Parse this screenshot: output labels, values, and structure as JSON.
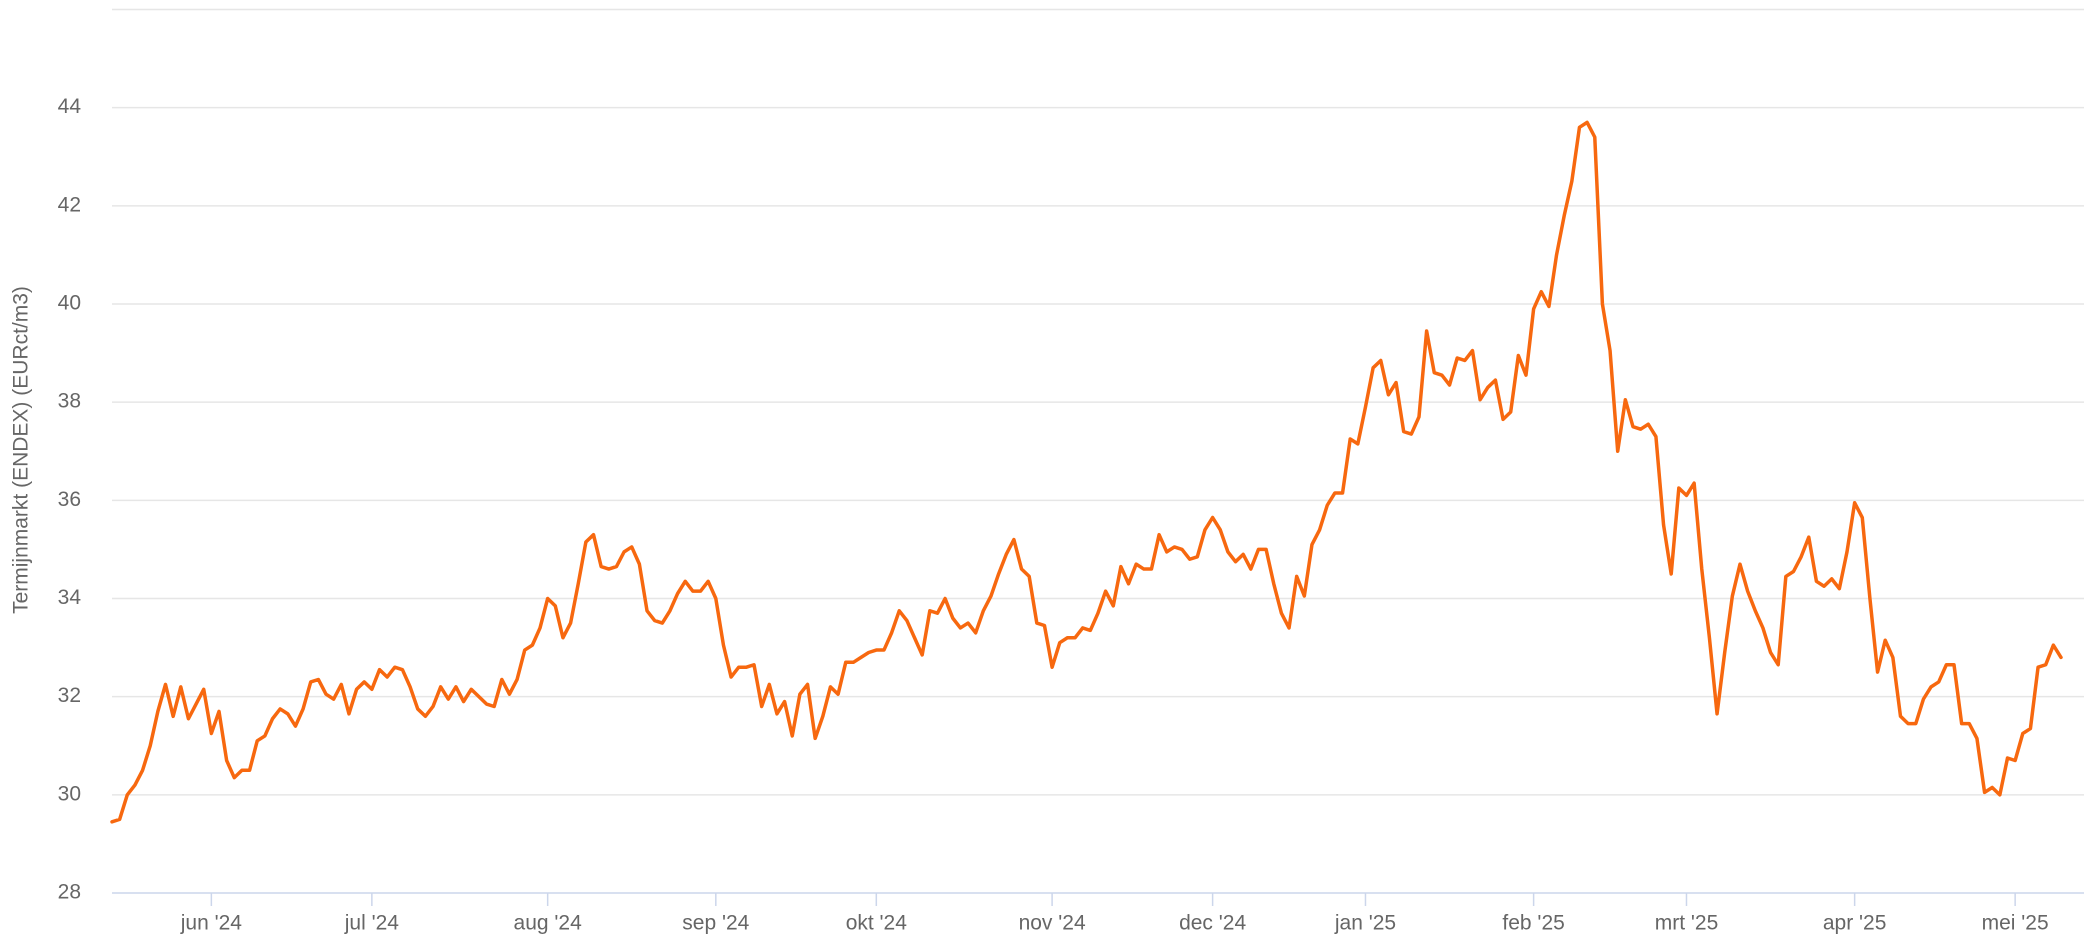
{
  "chart_data": {
    "type": "line",
    "y_label": "Termijnmarkt (ENDEX) (EURct/m3)",
    "color": "#f7680f",
    "ylim": [
      28,
      46
    ],
    "yticks": [
      28,
      30,
      32,
      34,
      36,
      38,
      40,
      42,
      44
    ],
    "grid": true,
    "categories": [
      null,
      null,
      null,
      null,
      null,
      null,
      null,
      null,
      null,
      null,
      null,
      null,
      null,
      "jun '24",
      null,
      null,
      null,
      null,
      null,
      null,
      null,
      null,
      null,
      null,
      null,
      null,
      null,
      null,
      null,
      null,
      null,
      null,
      null,
      null,
      "jul '24",
      null,
      null,
      null,
      null,
      null,
      null,
      null,
      null,
      null,
      null,
      null,
      null,
      null,
      null,
      null,
      null,
      null,
      null,
      null,
      null,
      null,
      null,
      "aug '24",
      null,
      null,
      null,
      null,
      null,
      null,
      null,
      null,
      null,
      null,
      null,
      null,
      null,
      null,
      null,
      null,
      null,
      null,
      null,
      null,
      null,
      "sep '24",
      null,
      null,
      null,
      null,
      null,
      null,
      null,
      null,
      null,
      null,
      null,
      null,
      null,
      null,
      null,
      null,
      null,
      null,
      null,
      null,
      "okt '24",
      null,
      null,
      null,
      null,
      null,
      null,
      null,
      null,
      null,
      null,
      null,
      null,
      null,
      null,
      null,
      null,
      null,
      null,
      null,
      null,
      null,
      null,
      "nov '24",
      null,
      null,
      null,
      null,
      null,
      null,
      null,
      null,
      null,
      null,
      null,
      null,
      null,
      null,
      null,
      null,
      null,
      null,
      null,
      null,
      "dec '24",
      null,
      null,
      null,
      null,
      null,
      null,
      null,
      null,
      null,
      null,
      null,
      null,
      null,
      null,
      null,
      null,
      null,
      null,
      null,
      "jan '25",
      null,
      null,
      null,
      null,
      null,
      null,
      null,
      null,
      null,
      null,
      null,
      null,
      null,
      null,
      null,
      null,
      null,
      null,
      null,
      null,
      null,
      "feb '25",
      null,
      null,
      null,
      null,
      null,
      null,
      null,
      null,
      null,
      null,
      null,
      null,
      null,
      null,
      null,
      null,
      null,
      null,
      null,
      "mrt '25",
      null,
      null,
      null,
      null,
      null,
      null,
      null,
      null,
      null,
      null,
      null,
      null,
      null,
      null,
      null,
      null,
      null,
      null,
      null,
      null,
      null,
      "apr '25",
      null,
      null,
      null,
      null,
      null,
      null,
      null,
      null,
      null,
      null,
      null,
      null,
      null,
      null,
      null,
      null,
      null,
      null,
      null,
      null,
      "mei '25",
      null,
      null,
      null,
      null,
      null,
      null
    ],
    "values": [
      29.45,
      29.5,
      30.0,
      30.2,
      30.5,
      31.0,
      31.7,
      32.25,
      31.6,
      32.2,
      31.55,
      31.85,
      32.15,
      31.25,
      31.7,
      30.7,
      30.35,
      30.5,
      30.5,
      31.1,
      31.2,
      31.55,
      31.75,
      31.65,
      31.4,
      31.75,
      32.3,
      32.35,
      32.05,
      31.95,
      32.25,
      31.65,
      32.15,
      32.3,
      32.15,
      32.55,
      32.4,
      32.6,
      32.55,
      32.2,
      31.75,
      31.6,
      31.8,
      32.2,
      31.95,
      32.2,
      31.9,
      32.15,
      32.0,
      31.85,
      31.8,
      32.35,
      32.05,
      32.35,
      32.95,
      33.05,
      33.4,
      34.0,
      33.85,
      33.2,
      33.5,
      34.3,
      35.15,
      35.3,
      34.65,
      34.6,
      34.65,
      34.95,
      35.05,
      34.7,
      33.75,
      33.55,
      33.5,
      33.75,
      34.1,
      34.35,
      34.15,
      34.15,
      34.35,
      34.0,
      33.05,
      32.4,
      32.6,
      32.6,
      32.65,
      31.8,
      32.25,
      31.65,
      31.9,
      31.2,
      32.05,
      32.25,
      31.15,
      31.6,
      32.2,
      32.05,
      32.7,
      32.7,
      32.8,
      32.9,
      32.95,
      32.95,
      33.3,
      33.75,
      33.55,
      33.2,
      32.85,
      33.75,
      33.7,
      34.0,
      33.6,
      33.4,
      33.5,
      33.3,
      33.75,
      34.05,
      34.5,
      34.9,
      35.2,
      34.6,
      34.45,
      33.5,
      33.45,
      32.6,
      33.1,
      33.2,
      33.2,
      33.4,
      33.35,
      33.7,
      34.15,
      33.85,
      34.65,
      34.3,
      34.7,
      34.6,
      34.6,
      35.3,
      34.95,
      35.05,
      35.0,
      34.8,
      34.85,
      35.4,
      35.65,
      35.4,
      34.95,
      34.75,
      34.9,
      34.6,
      35.0,
      35.0,
      34.3,
      33.7,
      33.4,
      34.45,
      34.05,
      35.1,
      35.4,
      35.9,
      36.15,
      36.15,
      37.25,
      37.15,
      37.9,
      38.7,
      38.85,
      38.15,
      38.4,
      37.4,
      37.35,
      37.7,
      39.45,
      38.6,
      38.55,
      38.35,
      38.9,
      38.85,
      39.05,
      38.05,
      38.3,
      38.45,
      37.65,
      37.8,
      38.95,
      38.55,
      39.9,
      40.25,
      39.95,
      41.0,
      41.8,
      42.5,
      43.6,
      43.7,
      43.4,
      40.0,
      39.05,
      37.0,
      38.05,
      37.5,
      37.45,
      37.55,
      37.3,
      35.5,
      34.5,
      36.25,
      36.1,
      36.35,
      34.6,
      33.2,
      31.65,
      32.9,
      34.05,
      34.7,
      34.15,
      33.75,
      33.4,
      32.9,
      32.65,
      34.45,
      34.55,
      34.85,
      35.25,
      34.35,
      34.25,
      34.4,
      34.2,
      34.95,
      35.95,
      35.65,
      34.0,
      32.5,
      33.15,
      32.8,
      31.6,
      31.45,
      31.45,
      31.95,
      32.2,
      32.3,
      32.65,
      32.65,
      31.45,
      31.45,
      31.15,
      30.05,
      30.15,
      30.0,
      30.75,
      30.7,
      31.25,
      31.35,
      32.6,
      32.65,
      33.05,
      32.8
    ]
  }
}
